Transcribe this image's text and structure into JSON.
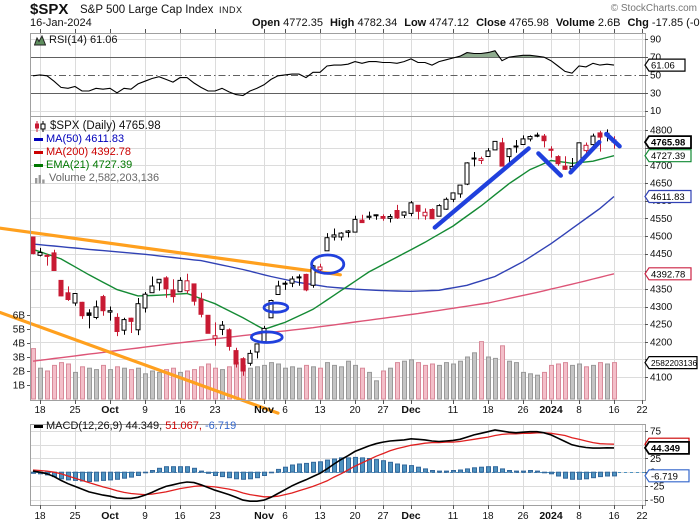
{
  "header": {
    "symbol": "$SPX",
    "name": "S&P 500 Large Cap Index",
    "exchange": "INDX",
    "date": "16-Jan-2024",
    "quote_fields": [
      {
        "label": "Open",
        "value": "4772.35"
      },
      {
        "label": "High",
        "value": "4782.34"
      },
      {
        "label": "Low",
        "value": "4747.12"
      },
      {
        "label": "Close",
        "value": "4765.98"
      },
      {
        "label": "Volume",
        "value": "2.6B"
      },
      {
        "label": "Chg",
        "value": "-17.85 (-0.37%)"
      }
    ],
    "change_arrow": "▼",
    "credit": "© StockCharts.com"
  },
  "panels": {
    "rsi": {
      "legend": "RSI(14) 61.06"
    },
    "price": {
      "legend_symbol": "$SPX (Daily) 4765.98",
      "legend_ma50": "MA(50) 4611.83",
      "legend_ma200": "MA(200) 4392.78",
      "legend_ema21": "EMA(21) 4727.39",
      "legend_volume": "Volume 2,582,203,136"
    },
    "macd": {
      "legend_black": "MACD(12,26,9) 44.349,",
      "legend_red": "51.067,",
      "legend_blue": "-6.719"
    }
  },
  "chart_data": {
    "type": "candlestick+indicators",
    "symbol": "$SPX",
    "timeframe": "Daily",
    "start_date": "2023-09-15",
    "x_ticks": [
      {
        "label": "18",
        "i": 1,
        "bold": false
      },
      {
        "label": "25",
        "i": 6,
        "bold": false
      },
      {
        "label": "Oct",
        "i": 11,
        "bold": true
      },
      {
        "label": "9",
        "i": 16,
        "bold": false
      },
      {
        "label": "16",
        "i": 21,
        "bold": false
      },
      {
        "label": "23",
        "i": 26,
        "bold": false
      },
      {
        "label": "Nov",
        "i": 33,
        "bold": true
      },
      {
        "label": "6",
        "i": 36,
        "bold": false
      },
      {
        "label": "13",
        "i": 41,
        "bold": false
      },
      {
        "label": "20",
        "i": 46,
        "bold": false
      },
      {
        "label": "27",
        "i": 50,
        "bold": false
      },
      {
        "label": "Dec",
        "i": 54,
        "bold": true
      },
      {
        "label": "11",
        "i": 60,
        "bold": false
      },
      {
        "label": "18",
        "i": 65,
        "bold": false
      },
      {
        "label": "26",
        "i": 70,
        "bold": false
      },
      {
        "label": "2024",
        "i": 74,
        "bold": true
      },
      {
        "label": "8",
        "i": 78,
        "bold": false
      },
      {
        "label": "16",
        "i": 83,
        "bold": false
      },
      {
        "label": "22",
        "i": 87,
        "bold": false
      }
    ],
    "price_axis": {
      "min": 4035,
      "max": 4840,
      "tick_labels": [
        4100,
        4150,
        4200,
        4250,
        4300,
        4350,
        4400,
        4450,
        4500,
        4550,
        4600,
        4650,
        4700,
        4750,
        4800
      ]
    },
    "volume_axis": {
      "tick_labels": [
        "1B",
        "2B",
        "3B",
        "4B",
        "5B",
        "6B"
      ],
      "tick_values": [
        1,
        2,
        3,
        4,
        5,
        6
      ]
    },
    "rsi_axis": {
      "min": 4,
      "max": 97,
      "tick_labels": [
        90,
        70,
        50,
        30,
        10
      ],
      "overbought": 70,
      "oversold": 30,
      "mid": 50
    },
    "macd_axis": {
      "min": -60,
      "max": 88,
      "tick_labels": [
        75,
        50,
        25,
        0,
        -25,
        -50
      ]
    },
    "callouts": {
      "price": [
        {
          "text": "4765.98",
          "value": 4765.98,
          "color": "#000000",
          "bold": true
        },
        {
          "text": "4727.39",
          "value": 4727.39,
          "color": "#118a34",
          "bold": false
        },
        {
          "text": "4611.83",
          "value": 4611.83,
          "color": "#3142b5",
          "bold": false
        },
        {
          "text": "4392.78",
          "value": 4392.78,
          "color": "#cc2244",
          "bold": false
        }
      ],
      "volume_last": {
        "text": "2582203136",
        "value": 2.6,
        "color": "#000000"
      },
      "rsi": {
        "text": "61.06",
        "value": 61.06,
        "color": "#000000"
      },
      "macd": [
        {
          "text": "51.067",
          "value": 51.067,
          "color": "#cc0000"
        },
        {
          "text": "44.349",
          "value": 44.349,
          "color": "#000000"
        },
        {
          "text": "-6.719",
          "value": -6.719,
          "color": "#3366cc"
        }
      ]
    },
    "candles": [
      [
        4497,
        4497,
        4448,
        4450
      ],
      [
        4445,
        4466,
        4442,
        4453
      ],
      [
        4445,
        4449,
        4416,
        4444
      ],
      [
        4452,
        4461,
        4401,
        4402
      ],
      [
        4374,
        4375,
        4329,
        4330
      ],
      [
        4339,
        4357,
        4316,
        4320
      ],
      [
        4310,
        4338,
        4302,
        4337
      ],
      [
        4312,
        4313,
        4265,
        4274
      ],
      [
        4282,
        4292,
        4238,
        4275
      ],
      [
        4269,
        4317,
        4264,
        4299
      ],
      [
        4328,
        4333,
        4274,
        4288
      ],
      [
        4284,
        4300,
        4260,
        4288
      ],
      [
        4269,
        4281,
        4216,
        4229
      ],
      [
        4233,
        4268,
        4220,
        4263
      ],
      [
        4267,
        4268,
        4225,
        4258
      ],
      [
        4234,
        4324,
        4219,
        4308
      ],
      [
        4296,
        4341,
        4283,
        4335
      ],
      [
        4339,
        4385,
        4339,
        4358
      ],
      [
        4367,
        4378,
        4345,
        4377
      ],
      [
        4381,
        4386,
        4325,
        4350
      ],
      [
        4347,
        4377,
        4311,
        4328
      ],
      [
        4342,
        4383,
        4342,
        4374
      ],
      [
        4345,
        4393,
        4337,
        4373
      ],
      [
        4364,
        4364,
        4303,
        4315
      ],
      [
        4321,
        4339,
        4269,
        4278
      ],
      [
        4275,
        4276,
        4224,
        4224
      ],
      [
        4210,
        4255,
        4189,
        4217
      ],
      [
        4235,
        4259,
        4219,
        4247
      ],
      [
        4234,
        4238,
        4175,
        4187
      ],
      [
        4175,
        4183,
        4127,
        4137
      ],
      [
        4152,
        4156,
        4104,
        4117
      ],
      [
        4139,
        4177,
        4132,
        4167
      ],
      [
        4171,
        4195,
        4153,
        4194
      ],
      [
        4201,
        4245,
        4197,
        4238
      ],
      [
        4268,
        4319,
        4268,
        4317
      ],
      [
        4334,
        4373,
        4334,
        4358
      ],
      [
        4364,
        4372,
        4347,
        4366
      ],
      [
        4366,
        4386,
        4355,
        4378
      ],
      [
        4384,
        4391,
        4359,
        4383
      ],
      [
        4391,
        4393,
        4343,
        4347
      ],
      [
        4360,
        4418,
        4353,
        4415
      ],
      [
        4404,
        4421,
        4393,
        4412
      ],
      [
        4458,
        4508,
        4458,
        4495
      ],
      [
        4497,
        4521,
        4487,
        4503
      ],
      [
        4497,
        4511,
        4487,
        4508
      ],
      [
        4510,
        4517,
        4496,
        4514
      ],
      [
        4511,
        4557,
        4510,
        4547
      ],
      [
        4545,
        4560,
        4537,
        4538
      ],
      [
        4553,
        4569,
        4546,
        4556
      ],
      [
        4560,
        4561,
        4546,
        4559
      ],
      [
        4555,
        4561,
        4543,
        4550
      ],
      [
        4550,
        4562,
        4538,
        4555
      ],
      [
        4572,
        4588,
        4548,
        4551
      ],
      [
        4559,
        4570,
        4551,
        4568
      ],
      [
        4564,
        4599,
        4556,
        4594
      ],
      [
        4587,
        4587,
        4547,
        4570
      ],
      [
        4557,
        4578,
        4546,
        4567
      ],
      [
        4575,
        4578,
        4549,
        4549
      ],
      [
        4556,
        4590,
        4556,
        4586
      ],
      [
        4576,
        4609,
        4574,
        4604
      ],
      [
        4604,
        4623,
        4596,
        4622
      ],
      [
        4619,
        4644,
        4608,
        4644
      ],
      [
        4647,
        4709,
        4644,
        4707
      ],
      [
        4721,
        4738,
        4697,
        4720
      ],
      [
        4714,
        4725,
        4704,
        4719
      ],
      [
        4725,
        4749,
        4725,
        4741
      ],
      [
        4744,
        4768,
        4744,
        4768
      ],
      [
        4764,
        4778,
        4698,
        4698
      ],
      [
        4725,
        4749,
        4708,
        4747
      ],
      [
        4754,
        4772,
        4736,
        4755
      ],
      [
        4759,
        4785,
        4758,
        4775
      ],
      [
        4775,
        4785,
        4768,
        4782
      ],
      [
        4786,
        4793,
        4780,
        4783
      ],
      [
        4783,
        4789,
        4751,
        4770
      ],
      [
        4746,
        4754,
        4722,
        4743
      ],
      [
        4725,
        4729,
        4699,
        4705
      ],
      [
        4698,
        4726,
        4687,
        4689
      ],
      [
        4690,
        4721,
        4682,
        4697
      ],
      [
        4704,
        4764,
        4699,
        4764
      ],
      [
        4742,
        4765,
        4730,
        4757
      ],
      [
        4759,
        4790,
        4756,
        4783
      ],
      [
        4792,
        4798,
        4739,
        4780
      ],
      [
        4791,
        4802,
        4768,
        4784
      ],
      [
        4772.35,
        4782.34,
        4747.12,
        4765.98
      ]
    ],
    "volume_B": [
      3.6,
      2.2,
      2.0,
      2.4,
      2.6,
      2.5,
      1.9,
      2.3,
      2.2,
      2.1,
      2.4,
      2.1,
      2.3,
      2.2,
      2.1,
      2.2,
      1.8,
      2.0,
      1.9,
      2.1,
      2.2,
      1.9,
      2.0,
      2.1,
      2.3,
      2.5,
      2.2,
      2.1,
      2.3,
      2.6,
      2.4,
      2.2,
      2.3,
      2.4,
      2.6,
      2.5,
      2.2,
      2.3,
      2.2,
      2.4,
      2.3,
      2.2,
      2.6,
      2.4,
      2.3,
      2.7,
      2.4,
      2.2,
      1.9,
      1.3,
      2.0,
      2.2,
      2.6,
      2.7,
      2.8,
      2.6,
      2.4,
      2.5,
      2.4,
      2.6,
      2.5,
      2.7,
      3.0,
      3.3,
      4.1,
      3.0,
      2.9,
      3.8,
      2.7,
      2.6,
      1.9,
      1.8,
      1.7,
      1.9,
      2.4,
      2.5,
      2.6,
      2.4,
      2.5,
      2.3,
      2.4,
      2.6,
      2.5,
      2.6
    ],
    "rsi": [
      49,
      50,
      49,
      43,
      36,
      35,
      37,
      32,
      32,
      35,
      34,
      35,
      30,
      35,
      34,
      40,
      43,
      46,
      48,
      45,
      42,
      47,
      47,
      41,
      36,
      32,
      32,
      35,
      31,
      28,
      27,
      32,
      35,
      39,
      45,
      49,
      50,
      51,
      51,
      47,
      53,
      53,
      60,
      61,
      61,
      62,
      65,
      63,
      65,
      65,
      64,
      64,
      63,
      65,
      68,
      64,
      64,
      61,
      65,
      67,
      69,
      71,
      75,
      74,
      74,
      75,
      77,
      66,
      70,
      71,
      72,
      72,
      71,
      70,
      66,
      60,
      54,
      52,
      60,
      59,
      63,
      61,
      62,
      61.06
    ],
    "macd": [
      2,
      0,
      -3,
      -8,
      -15,
      -21,
      -26,
      -31,
      -36,
      -39,
      -42,
      -44,
      -47,
      -48,
      -48,
      -46,
      -42,
      -37,
      -31,
      -26,
      -23,
      -20,
      -18,
      -19,
      -23,
      -28,
      -33,
      -37,
      -41,
      -46,
      -51,
      -53,
      -53,
      -51,
      -46,
      -39,
      -32,
      -25,
      -19,
      -14,
      -8,
      -2,
      6,
      15,
      23,
      30,
      38,
      43,
      48,
      52,
      55,
      57,
      58,
      59,
      61,
      60,
      59,
      57,
      56,
      57,
      58,
      60,
      64,
      68,
      71,
      74,
      77,
      75,
      73,
      72,
      73,
      74,
      74,
      72,
      68,
      62,
      56,
      50,
      47,
      45,
      44,
      44,
      44.5,
      44.349
    ],
    "macd_signal": [
      4,
      3,
      2,
      0,
      -3,
      -7,
      -11,
      -15,
      -19,
      -23,
      -27,
      -30,
      -34,
      -37,
      -39,
      -40,
      -41,
      -40,
      -38,
      -36,
      -33,
      -30,
      -28,
      -26,
      -25,
      -26,
      -27,
      -29,
      -31,
      -34,
      -38,
      -41,
      -43,
      -45,
      -45,
      -44,
      -41,
      -38,
      -34,
      -30,
      -26,
      -21,
      -16,
      -9,
      -3,
      4,
      11,
      17,
      23,
      29,
      34,
      39,
      43,
      46,
      49,
      51,
      53,
      54,
      54,
      55,
      55,
      56,
      58,
      60,
      62,
      64,
      67,
      69,
      70,
      70,
      71,
      71,
      72,
      72,
      71,
      69,
      67,
      63,
      60,
      57,
      54,
      52,
      51.5,
      51.067
    ],
    "ma50_keypoints": [
      [
        0,
        4477
      ],
      [
        8,
        4462
      ],
      [
        16,
        4448
      ],
      [
        24,
        4430
      ],
      [
        30,
        4405
      ],
      [
        34,
        4385
      ],
      [
        38,
        4368
      ],
      [
        42,
        4356
      ],
      [
        46,
        4349
      ],
      [
        50,
        4345
      ],
      [
        54,
        4343
      ],
      [
        58,
        4346
      ],
      [
        62,
        4360
      ],
      [
        66,
        4385
      ],
      [
        70,
        4427
      ],
      [
        74,
        4478
      ],
      [
        78,
        4535
      ],
      [
        81,
        4578
      ],
      [
        83,
        4611.83
      ]
    ],
    "ma200_keypoints": [
      [
        0,
        4145
      ],
      [
        20,
        4195
      ],
      [
        40,
        4240
      ],
      [
        55,
        4280
      ],
      [
        65,
        4310
      ],
      [
        72,
        4340
      ],
      [
        78,
        4368
      ],
      [
        83,
        4392.78
      ]
    ],
    "ema21_keypoints": [
      [
        0,
        4462
      ],
      [
        4,
        4435
      ],
      [
        8,
        4390
      ],
      [
        12,
        4348
      ],
      [
        15,
        4330
      ],
      [
        18,
        4332
      ],
      [
        22,
        4337
      ],
      [
        26,
        4308
      ],
      [
        30,
        4268
      ],
      [
        33,
        4235
      ],
      [
        36,
        4255
      ],
      [
        40,
        4292
      ],
      [
        44,
        4345
      ],
      [
        48,
        4398
      ],
      [
        52,
        4440
      ],
      [
        56,
        4482
      ],
      [
        60,
        4528
      ],
      [
        64,
        4585
      ],
      [
        68,
        4648
      ],
      [
        71,
        4688
      ],
      [
        74,
        4714
      ],
      [
        77,
        4706
      ],
      [
        80,
        4712
      ],
      [
        83,
        4727.39
      ]
    ],
    "annotations": {
      "orange_trendlines": [
        {
          "from": [
            -4.7,
            4522
          ],
          "to": [
            43.9,
            4390
          ]
        },
        {
          "from": [
            -4.7,
            4283
          ],
          "to": [
            35.0,
            3998
          ]
        }
      ],
      "blue_segments": [
        {
          "from": [
            57.4,
            4524
          ],
          "to": [
            70.8,
            4748
          ]
        },
        {
          "from": [
            72.2,
            4734
          ],
          "to": [
            75.4,
            4671
          ]
        },
        {
          "from": [
            76.8,
            4680
          ],
          "to": [
            80.9,
            4766
          ]
        },
        {
          "from": [
            81.9,
            4789
          ],
          "to": [
            83.8,
            4754
          ]
        }
      ],
      "blue_ellipses": [
        {
          "i": 33.4,
          "price": 4213,
          "rx_days": 2.2,
          "ry_price": 15
        },
        {
          "i": 34.7,
          "price": 4297,
          "rx_days": 1.7,
          "ry_price": 13
        },
        {
          "i": 42.1,
          "price": 4420,
          "rx_days": 2.3,
          "ry_price": 26
        }
      ]
    },
    "colors": {
      "candle_up_outline": "#000000",
      "candle_down": "#c81a33",
      "ma50": "#3142b5",
      "ma200": "#dd5577",
      "ema21": "#148a34",
      "orange_line": "#ffa01e",
      "annotation_blue": "#2040dd",
      "rsi_line": "#000000",
      "rsi_fill_over70": "#8fac8f",
      "macd_line": "#000000",
      "macd_signal": "#e02020",
      "macd_hist_fill": "#4f93c0",
      "macd_hist_stroke": "#33689c",
      "vol_up_fill": "#c4c4c4",
      "vol_up_stroke": "#9a9a9a",
      "vol_down_fill": "#f3bfc9",
      "vol_down_stroke": "#d98a9a",
      "grid": "#dcdcdc",
      "panel_border": "#a0a0a0",
      "rsi_band_line": "#606060"
    }
  }
}
